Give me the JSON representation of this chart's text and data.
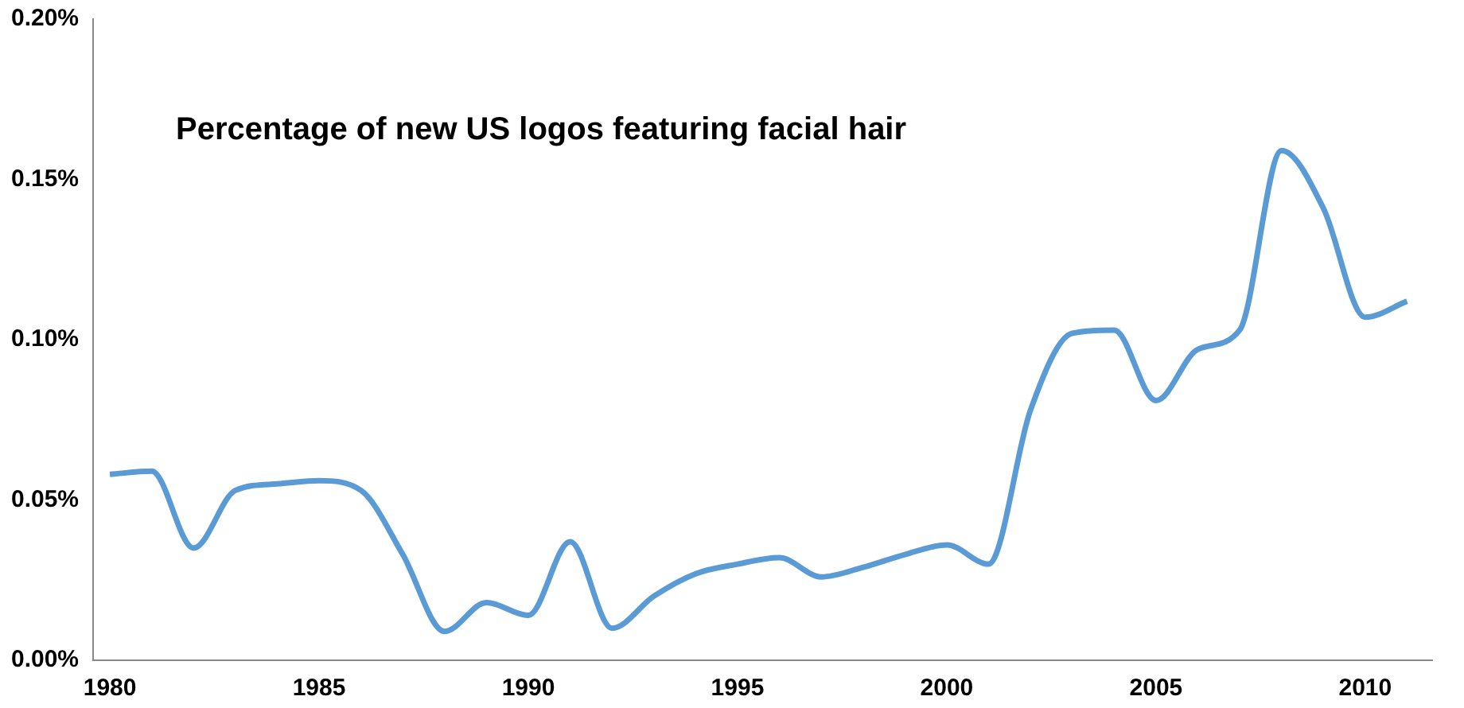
{
  "chart_data": {
    "type": "line",
    "title": "Percentage of new US logos featuring facial hair",
    "x": [
      1980,
      1981,
      1982,
      1983,
      1984,
      1985,
      1986,
      1987,
      1988,
      1989,
      1990,
      1991,
      1992,
      1993,
      1994,
      1995,
      1996,
      1997,
      1998,
      1999,
      2000,
      2001,
      2002,
      2003,
      2004,
      2005,
      2006,
      2007,
      2008,
      2009,
      2010,
      2011
    ],
    "series": [
      {
        "color": "#5b9bd5",
        "values": [
          0.058,
          0.059,
          0.035,
          0.053,
          0.055,
          0.056,
          0.053,
          0.033,
          0.009,
          0.018,
          0.014,
          0.037,
          0.01,
          0.02,
          0.027,
          0.03,
          0.032,
          0.026,
          0.029,
          0.033,
          0.036,
          0.03,
          0.078,
          0.102,
          0.103,
          0.081,
          0.097,
          0.103,
          0.159,
          0.141,
          0.107,
          0.112
        ]
      }
    ],
    "xlim": [
      1979.6,
      2011.6
    ],
    "xticks": [
      1980,
      1985,
      1990,
      1995,
      2000,
      2005,
      2010
    ],
    "ylim": [
      0,
      0.2
    ],
    "yticks": [
      {
        "value": 0,
        "label": "0.00%"
      },
      {
        "value": 0.05,
        "label": "0.05%"
      },
      {
        "value": 0.1,
        "label": "0.10%"
      },
      {
        "value": 0.15,
        "label": "0.15%"
      },
      {
        "value": 0.2,
        "label": "0.20%"
      }
    ],
    "grid": false,
    "legend": false,
    "marker": "none",
    "line_style": "solid"
  }
}
